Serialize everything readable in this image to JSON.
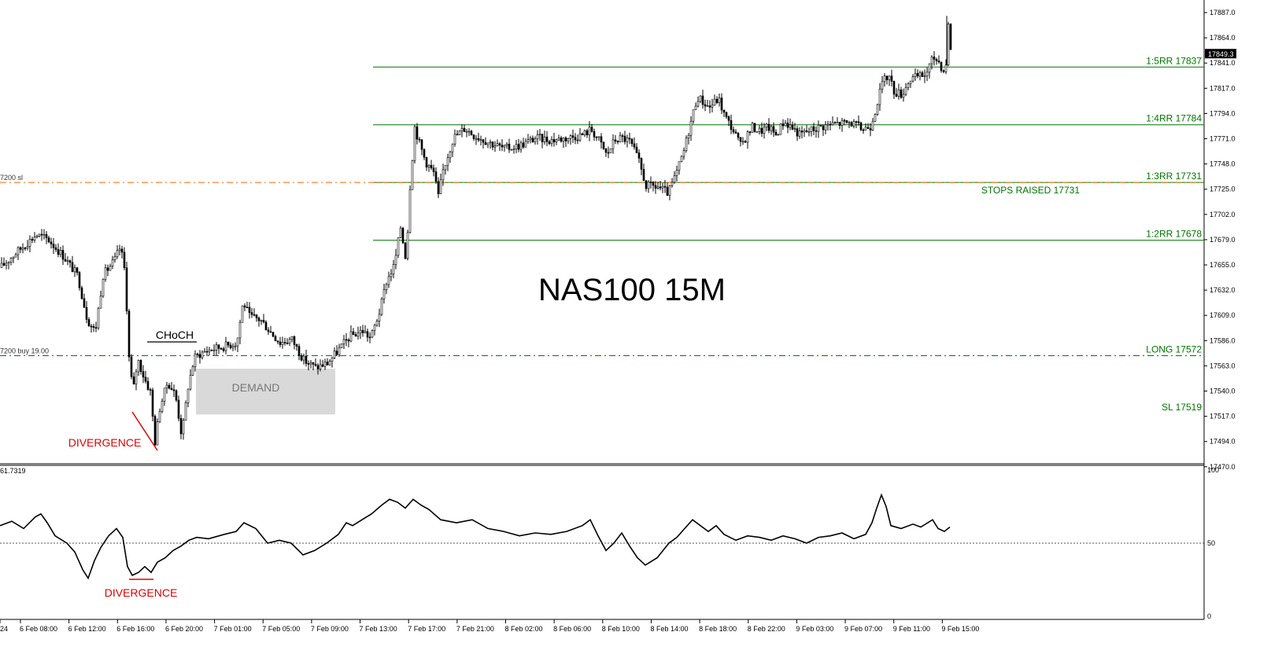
{
  "chart_data": {
    "type": "candlestick",
    "title": "NAS100 15M",
    "symbol": "NAS100",
    "timeframe": "15M",
    "price_axis": {
      "ylim": [
        17460,
        17895
      ],
      "ticks": [
        "17887.0",
        "17864.0",
        "17841.0",
        "17817.0",
        "17794.0",
        "17771.0",
        "17748.0",
        "17725.0",
        "17702.0",
        "17679.0",
        "17655.0",
        "17632.0",
        "17609.0",
        "17586.0",
        "17563.0",
        "17540.0",
        "17517.0",
        "17494.0",
        "17470.0"
      ],
      "current_price": "17849.3",
      "current_value": 17849.3
    },
    "time_axis": {
      "labels": [
        "24",
        "6 Feb 08:00",
        "6 Feb 12:00",
        "6 Feb 16:00",
        "6 Feb 20:00",
        "7 Feb 01:00",
        "7 Feb 05:00",
        "7 Feb 09:00",
        "7 Feb 13:00",
        "7 Feb 17:00",
        "7 Feb 21:00",
        "8 Feb 02:00",
        "8 Feb 06:00",
        "8 Feb 10:00",
        "8 Feb 14:00",
        "8 Feb 18:00",
        "8 Feb 22:00",
        "9 Feb 03:00",
        "9 Feb 07:00",
        "9 Feb 11:00",
        "9 Feb 15:00"
      ]
    },
    "price_path": [
      [
        0,
        17653
      ],
      [
        20,
        17667
      ],
      [
        45,
        17683
      ],
      [
        60,
        17679
      ],
      [
        80,
        17663
      ],
      [
        98,
        17645
      ],
      [
        110,
        17605
      ],
      [
        120,
        17594
      ],
      [
        130,
        17646
      ],
      [
        145,
        17660
      ],
      [
        152,
        17672
      ],
      [
        158,
        17648
      ],
      [
        163,
        17570
      ],
      [
        168,
        17538
      ],
      [
        174,
        17569
      ],
      [
        182,
        17552
      ],
      [
        190,
        17539
      ],
      [
        196,
        17493
      ],
      [
        202,
        17524
      ],
      [
        212,
        17548
      ],
      [
        222,
        17536
      ],
      [
        230,
        17498
      ],
      [
        238,
        17544
      ],
      [
        246,
        17570
      ],
      [
        254,
        17574
      ],
      [
        262,
        17577
      ],
      [
        280,
        17580
      ],
      [
        300,
        17584
      ],
      [
        308,
        17622
      ],
      [
        316,
        17608
      ],
      [
        330,
        17605
      ],
      [
        345,
        17592
      ],
      [
        355,
        17584
      ],
      [
        370,
        17587
      ],
      [
        385,
        17568
      ],
      [
        400,
        17561
      ],
      [
        415,
        17565
      ],
      [
        430,
        17578
      ],
      [
        444,
        17590
      ],
      [
        460,
        17595
      ],
      [
        470,
        17588
      ],
      [
        482,
        17614
      ],
      [
        490,
        17640
      ],
      [
        500,
        17655
      ],
      [
        508,
        17690
      ],
      [
        515,
        17660
      ],
      [
        520,
        17728
      ],
      [
        526,
        17782
      ],
      [
        532,
        17767
      ],
      [
        540,
        17750
      ],
      [
        550,
        17740
      ],
      [
        556,
        17718
      ],
      [
        562,
        17742
      ],
      [
        575,
        17772
      ],
      [
        590,
        17781
      ],
      [
        600,
        17775
      ],
      [
        620,
        17768
      ],
      [
        640,
        17762
      ],
      [
        660,
        17765
      ],
      [
        680,
        17772
      ],
      [
        700,
        17770
      ],
      [
        720,
        17772
      ],
      [
        740,
        17775
      ],
      [
        750,
        17780
      ],
      [
        760,
        17770
      ],
      [
        770,
        17756
      ],
      [
        780,
        17770
      ],
      [
        790,
        17772
      ],
      [
        800,
        17768
      ],
      [
        810,
        17752
      ],
      [
        820,
        17728
      ],
      [
        835,
        17727
      ],
      [
        848,
        17721
      ],
      [
        858,
        17738
      ],
      [
        868,
        17760
      ],
      [
        878,
        17790
      ],
      [
        885,
        17810
      ],
      [
        900,
        17800
      ],
      [
        912,
        17808
      ],
      [
        920,
        17792
      ],
      [
        930,
        17780
      ],
      [
        940,
        17765
      ],
      [
        955,
        17782
      ],
      [
        965,
        17778
      ],
      [
        975,
        17782
      ],
      [
        985,
        17775
      ],
      [
        995,
        17787
      ],
      [
        1005,
        17782
      ],
      [
        1015,
        17775
      ],
      [
        1025,
        17778
      ],
      [
        1040,
        17782
      ],
      [
        1060,
        17785
      ],
      [
        1080,
        17786
      ],
      [
        1095,
        17780
      ],
      [
        1105,
        17783
      ],
      [
        1112,
        17800
      ],
      [
        1120,
        17822
      ],
      [
        1128,
        17830
      ],
      [
        1135,
        17815
      ],
      [
        1145,
        17812
      ],
      [
        1155,
        17826
      ],
      [
        1165,
        17828
      ],
      [
        1175,
        17830
      ],
      [
        1185,
        17846
      ],
      [
        1192,
        17842
      ],
      [
        1200,
        17830
      ],
      [
        1204,
        17875
      ],
      [
        1208,
        17848
      ]
    ],
    "levels": [
      {
        "label": "1:5RR 17837",
        "price": 17837,
        "style": "solid",
        "color": "#007700",
        "x_start_frac": 0.31
      },
      {
        "label": "1:4RR 17784",
        "price": 17784,
        "style": "solid",
        "color": "#007700",
        "x_start_frac": 0.31
      },
      {
        "label": "1:3RR 17731",
        "price": 17731,
        "style": "solid",
        "color": "#007700",
        "x_start_frac": 0.31
      },
      {
        "label": "1:2RR 17678",
        "price": 17678,
        "style": "solid",
        "color": "#007700",
        "x_start_frac": 0.31
      },
      {
        "label": "LONG 17572",
        "price": 17572,
        "style": "dashdot",
        "color": "#007700",
        "x_start_frac": 0.0
      },
      {
        "label": "SL 17519",
        "price": 17519,
        "style": "none",
        "color": "#007700",
        "x_start_frac": 1.0
      }
    ],
    "stop_line": {
      "price": 17731,
      "style": "dashdot",
      "color": "#ff6600",
      "left_label": "7200 sl"
    },
    "order_label": "7200 buy 19.00",
    "annotations": {
      "stops_raised": "STOPS RAISED 17731",
      "choch": "CHoCH",
      "demand": "DEMAND",
      "price_divergence": "DIVERGENCE",
      "rsi_divergence": "DIVERGENCE"
    },
    "rsi": {
      "current_label": "61.7319",
      "ylim": [
        0,
        100
      ],
      "ticks": [
        "100",
        "50",
        "0"
      ],
      "midline": 50,
      "values": [
        [
          0,
          62
        ],
        [
          15,
          65
        ],
        [
          30,
          60
        ],
        [
          45,
          68
        ],
        [
          52,
          70
        ],
        [
          60,
          64
        ],
        [
          70,
          55
        ],
        [
          85,
          50
        ],
        [
          95,
          44
        ],
        [
          105,
          32
        ],
        [
          112,
          26
        ],
        [
          120,
          38
        ],
        [
          128,
          47
        ],
        [
          138,
          55
        ],
        [
          148,
          60
        ],
        [
          156,
          54
        ],
        [
          162,
          34
        ],
        [
          168,
          28
        ],
        [
          176,
          30
        ],
        [
          184,
          34
        ],
        [
          192,
          30
        ],
        [
          200,
          37
        ],
        [
          210,
          40
        ],
        [
          220,
          45
        ],
        [
          230,
          48
        ],
        [
          240,
          52
        ],
        [
          250,
          54
        ],
        [
          265,
          53
        ],
        [
          285,
          56
        ],
        [
          300,
          58
        ],
        [
          310,
          64
        ],
        [
          325,
          60
        ],
        [
          340,
          50
        ],
        [
          355,
          52
        ],
        [
          370,
          50
        ],
        [
          385,
          42
        ],
        [
          400,
          45
        ],
        [
          415,
          50
        ],
        [
          430,
          56
        ],
        [
          440,
          64
        ],
        [
          448,
          62
        ],
        [
          460,
          66
        ],
        [
          472,
          70
        ],
        [
          485,
          76
        ],
        [
          495,
          80
        ],
        [
          505,
          78
        ],
        [
          515,
          74
        ],
        [
          525,
          80
        ],
        [
          535,
          76
        ],
        [
          545,
          73
        ],
        [
          560,
          66
        ],
        [
          580,
          64
        ],
        [
          600,
          66
        ],
        [
          620,
          60
        ],
        [
          640,
          58
        ],
        [
          660,
          55
        ],
        [
          680,
          57
        ],
        [
          700,
          56
        ],
        [
          720,
          58
        ],
        [
          740,
          62
        ],
        [
          750,
          66
        ],
        [
          760,
          55
        ],
        [
          770,
          45
        ],
        [
          780,
          50
        ],
        [
          790,
          57
        ],
        [
          800,
          48
        ],
        [
          810,
          40
        ],
        [
          820,
          35
        ],
        [
          835,
          40
        ],
        [
          850,
          50
        ],
        [
          860,
          54
        ],
        [
          870,
          60
        ],
        [
          880,
          66
        ],
        [
          890,
          62
        ],
        [
          900,
          58
        ],
        [
          910,
          62
        ],
        [
          920,
          56
        ],
        [
          935,
          52
        ],
        [
          950,
          55
        ],
        [
          965,
          54
        ],
        [
          980,
          52
        ],
        [
          995,
          55
        ],
        [
          1010,
          53
        ],
        [
          1025,
          50
        ],
        [
          1040,
          54
        ],
        [
          1055,
          55
        ],
        [
          1070,
          57
        ],
        [
          1085,
          53
        ],
        [
          1100,
          56
        ],
        [
          1108,
          64
        ],
        [
          1114,
          74
        ],
        [
          1120,
          83
        ],
        [
          1126,
          75
        ],
        [
          1132,
          62
        ],
        [
          1145,
          60
        ],
        [
          1160,
          63
        ],
        [
          1170,
          61
        ],
        [
          1185,
          66
        ],
        [
          1192,
          60
        ],
        [
          1200,
          58
        ],
        [
          1207,
          61
        ]
      ]
    }
  }
}
